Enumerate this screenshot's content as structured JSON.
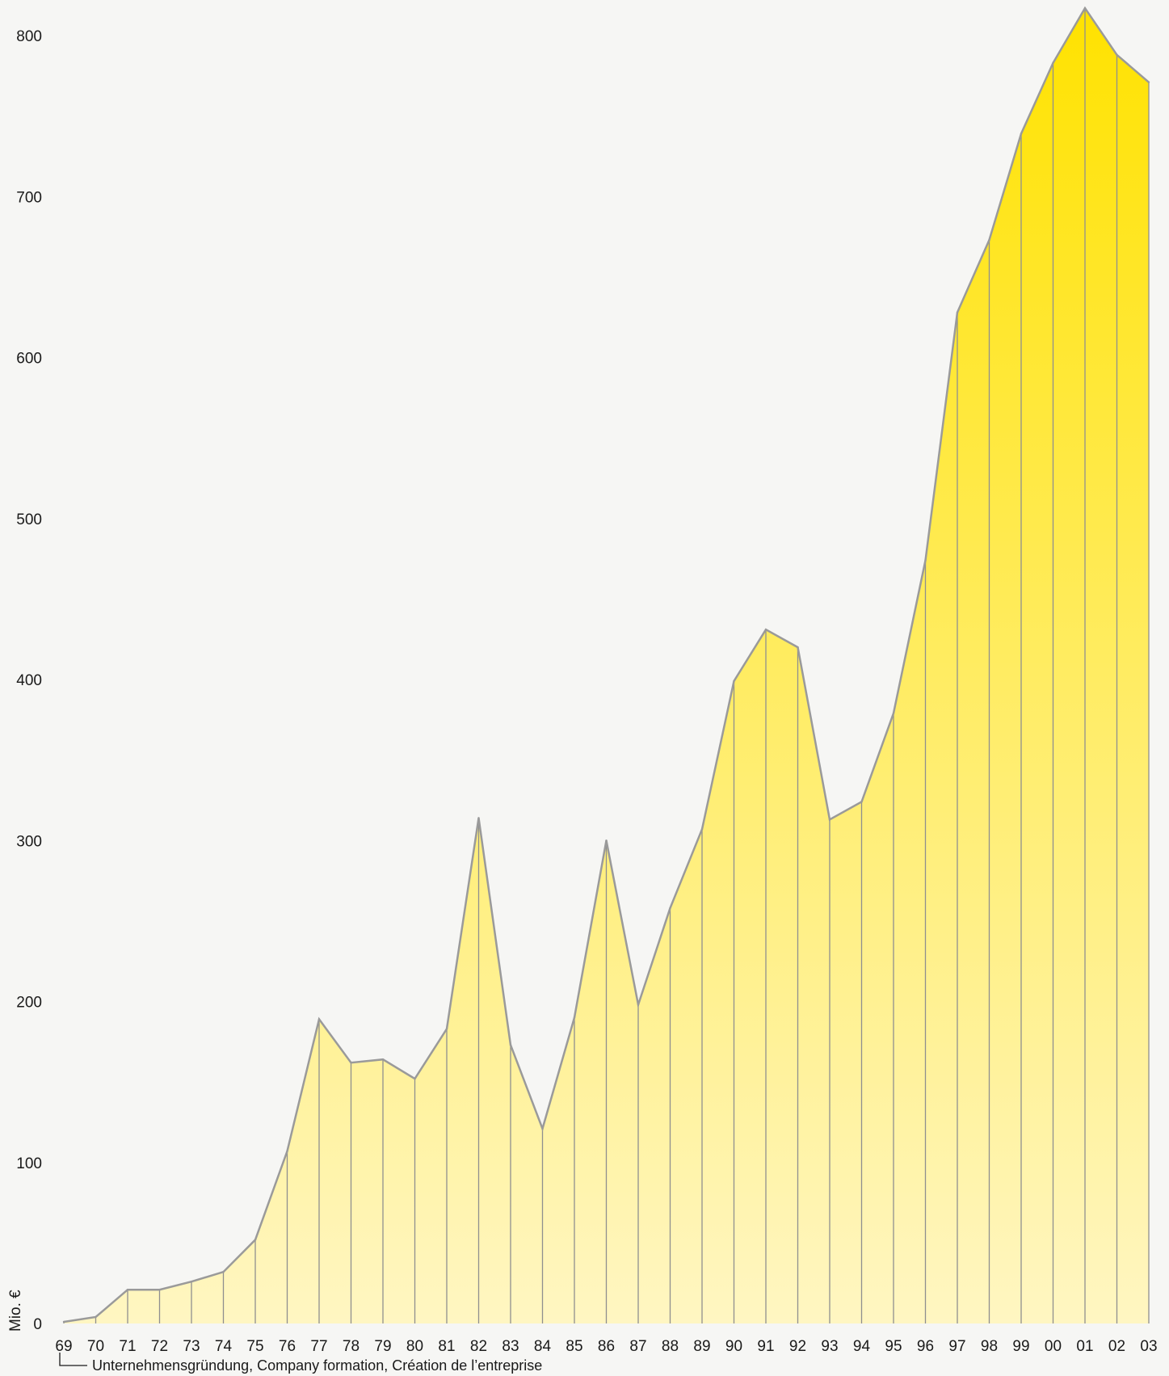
{
  "chart_data": {
    "type": "area",
    "unit_label": "Mio. €",
    "ylim": [
      0,
      820
    ],
    "yticks": [
      0,
      100,
      200,
      300,
      400,
      500,
      600,
      700,
      800
    ],
    "grid": false,
    "categories": [
      "69",
      "70",
      "71",
      "72",
      "73",
      "74",
      "75",
      "76",
      "77",
      "78",
      "79",
      "80",
      "81",
      "82",
      "83",
      "84",
      "85",
      "86",
      "87",
      "88",
      "89",
      "90",
      "91",
      "92",
      "93",
      "94",
      "95",
      "96",
      "97",
      "98",
      "99",
      "00",
      "01",
      "02",
      "03"
    ],
    "values": [
      1,
      4,
      21,
      21,
      26,
      32,
      52,
      107,
      189,
      162,
      164,
      152,
      183,
      314,
      173,
      121,
      190,
      300,
      198,
      258,
      307,
      399,
      431,
      420,
      313,
      324,
      379,
      474,
      628,
      673,
      739,
      783,
      817,
      788,
      771
    ],
    "annotation": "Unternehmensgründung, Company formation, Création de l’entreprise",
    "colors": {
      "fill_top": "#ffe200",
      "fill_bottom": "#fff6c2",
      "line": "#9a9a9a"
    }
  }
}
